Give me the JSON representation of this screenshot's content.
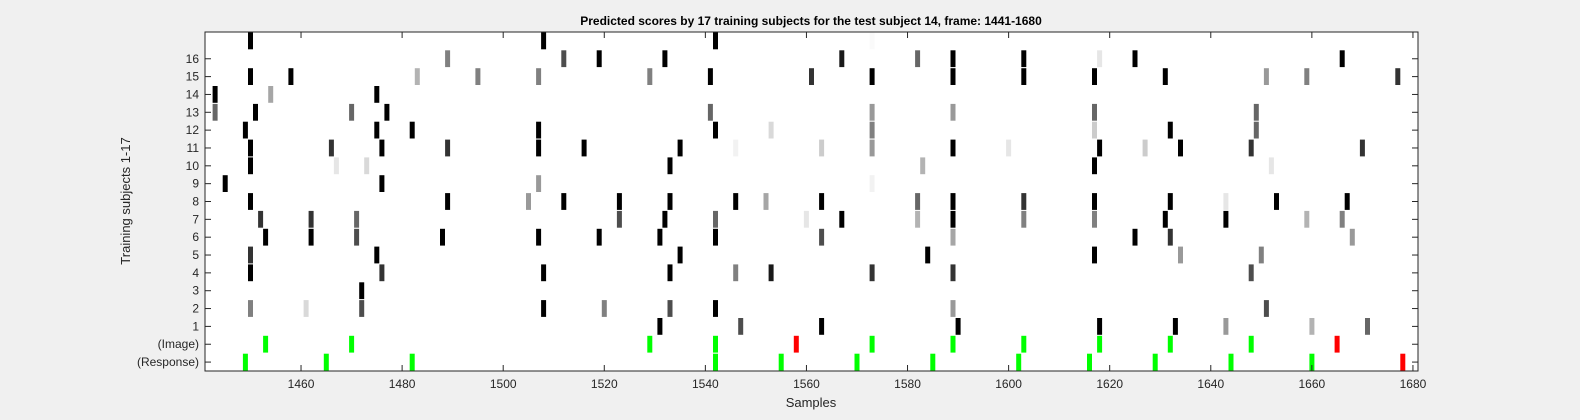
{
  "chart_data": {
    "type": "heatmap",
    "title": "Predicted scores by 17 training subjects for the test subject 14, frame: 1441-1680",
    "xlabel": "Samples",
    "ylabel": "Training subjects 1-17",
    "xlim": [
      1441,
      1680
    ],
    "xticks": [
      1460,
      1480,
      1500,
      1520,
      1540,
      1560,
      1580,
      1600,
      1620,
      1640,
      1660,
      1680
    ],
    "rows": [
      "(Response)",
      "(Image)",
      "1",
      "2",
      "3",
      "4",
      "5",
      "6",
      "7",
      "8",
      "9",
      "10",
      "11",
      "12",
      "13",
      "14",
      "15",
      "16",
      "17"
    ],
    "ytick_labels": [
      "(Response)",
      "(Image)",
      "1",
      "2",
      "3",
      "4",
      "5",
      "6",
      "7",
      "8",
      "9",
      "10",
      "11",
      "12",
      "13",
      "14",
      "15",
      "16"
    ],
    "colors": {
      "background": "#f0f0f0",
      "axes": "#ffffff",
      "correct": "#00ff00",
      "incorrect": "#ff0000"
    },
    "cells": {
      "(Response)": [
        [
          1449,
          "g"
        ],
        [
          1465,
          "g"
        ],
        [
          1482,
          "g"
        ],
        [
          1542,
          "g"
        ],
        [
          1555,
          "g"
        ],
        [
          1570,
          "g"
        ],
        [
          1585,
          "g"
        ],
        [
          1602,
          "g"
        ],
        [
          1616,
          "g"
        ],
        [
          1629,
          "g"
        ],
        [
          1644,
          "g"
        ],
        [
          1660,
          "g"
        ],
        [
          1678,
          "r"
        ]
      ],
      "(Image)": [
        [
          1453,
          "g"
        ],
        [
          1470,
          "g"
        ],
        [
          1529,
          "g"
        ],
        [
          1542,
          "g"
        ],
        [
          1558,
          "r"
        ],
        [
          1573,
          "g"
        ],
        [
          1589,
          "g"
        ],
        [
          1603,
          "g"
        ],
        [
          1618,
          "g"
        ],
        [
          1632,
          "g"
        ],
        [
          1648,
          "g"
        ],
        [
          1665,
          "r"
        ]
      ],
      "1": [
        [
          1531,
          1
        ],
        [
          1547,
          0.7
        ],
        [
          1563,
          1
        ],
        [
          1590,
          1
        ],
        [
          1618,
          1
        ],
        [
          1633,
          1
        ],
        [
          1643,
          0.4
        ],
        [
          1660,
          0.3
        ],
        [
          1671,
          0.6
        ]
      ],
      "2": [
        [
          1450,
          0.5
        ],
        [
          1461,
          0.15
        ],
        [
          1472,
          0.7
        ],
        [
          1508,
          1
        ],
        [
          1520,
          0.5
        ],
        [
          1533,
          0.7
        ],
        [
          1542,
          1
        ],
        [
          1589,
          0.4
        ],
        [
          1651,
          0.7
        ]
      ],
      "3": [
        [
          1472,
          1
        ]
      ],
      "4": [
        [
          1450,
          1
        ],
        [
          1476,
          0.8
        ],
        [
          1508,
          1
        ],
        [
          1533,
          1
        ],
        [
          1546,
          0.5
        ],
        [
          1553,
          0.9
        ],
        [
          1573,
          0.8
        ],
        [
          1589,
          0.8
        ],
        [
          1648,
          0.7
        ]
      ],
      "5": [
        [
          1450,
          0.8
        ],
        [
          1475,
          1
        ],
        [
          1535,
          1
        ],
        [
          1584,
          1
        ],
        [
          1617,
          1
        ],
        [
          1634,
          0.4
        ],
        [
          1650,
          0.5
        ]
      ],
      "6": [
        [
          1453,
          1
        ],
        [
          1462,
          1
        ],
        [
          1471,
          0.7
        ],
        [
          1488,
          1
        ],
        [
          1507,
          1
        ],
        [
          1519,
          1
        ],
        [
          1531,
          1
        ],
        [
          1542,
          1
        ],
        [
          1563,
          0.7
        ],
        [
          1589,
          0.35
        ],
        [
          1625,
          1
        ],
        [
          1632,
          0.8
        ],
        [
          1668,
          0.4
        ]
      ],
      "7": [
        [
          1452,
          0.8
        ],
        [
          1462,
          0.8
        ],
        [
          1471,
          0.6
        ],
        [
          1523,
          0.7
        ],
        [
          1532,
          1
        ],
        [
          1542,
          0.6
        ],
        [
          1560,
          0.1
        ],
        [
          1567,
          1
        ],
        [
          1582,
          0.3
        ],
        [
          1589,
          1
        ],
        [
          1603,
          0.5
        ],
        [
          1617,
          0.5
        ],
        [
          1631,
          1
        ],
        [
          1643,
          1
        ],
        [
          1659,
          0.3
        ],
        [
          1666,
          0.5
        ]
      ],
      "8": [
        [
          1450,
          1
        ],
        [
          1489,
          1
        ],
        [
          1505,
          0.4
        ],
        [
          1512,
          1
        ],
        [
          1523,
          1
        ],
        [
          1533,
          1
        ],
        [
          1546,
          1
        ],
        [
          1552,
          0.35
        ],
        [
          1563,
          1
        ],
        [
          1582,
          0.6
        ],
        [
          1589,
          1
        ],
        [
          1603,
          0.8
        ],
        [
          1617,
          1
        ],
        [
          1632,
          1
        ],
        [
          1643,
          0.1
        ],
        [
          1653,
          1
        ],
        [
          1667,
          1
        ]
      ],
      "9": [
        [
          1445,
          1
        ],
        [
          1476,
          1
        ],
        [
          1507,
          0.4
        ],
        [
          1573,
          0.05
        ]
      ],
      "10": [
        [
          1450,
          1
        ],
        [
          1467,
          0.1
        ],
        [
          1473,
          0.15
        ],
        [
          1533,
          1
        ],
        [
          1583,
          0.3
        ],
        [
          1617,
          1
        ],
        [
          1652,
          0.1
        ]
      ],
      "11": [
        [
          1450,
          1
        ],
        [
          1466,
          0.8
        ],
        [
          1476,
          1
        ],
        [
          1489,
          0.8
        ],
        [
          1507,
          1
        ],
        [
          1516,
          1
        ],
        [
          1535,
          1
        ],
        [
          1546,
          0.05
        ],
        [
          1563,
          0.2
        ],
        [
          1573,
          0.4
        ],
        [
          1589,
          1
        ],
        [
          1600,
          0.1
        ],
        [
          1618,
          1
        ],
        [
          1627,
          0.2
        ],
        [
          1634,
          1
        ],
        [
          1648,
          0.8
        ],
        [
          1670,
          0.8
        ]
      ],
      "12": [
        [
          1449,
          1
        ],
        [
          1475,
          1
        ],
        [
          1482,
          1
        ],
        [
          1507,
          1
        ],
        [
          1542,
          1
        ],
        [
          1553,
          0.15
        ],
        [
          1573,
          0.5
        ],
        [
          1617,
          0.2
        ],
        [
          1632,
          1
        ],
        [
          1649,
          0.6
        ]
      ],
      "13": [
        [
          1443,
          0.6
        ],
        [
          1451,
          1
        ],
        [
          1470,
          0.6
        ],
        [
          1477,
          1
        ],
        [
          1541,
          0.6
        ],
        [
          1573,
          0.4
        ],
        [
          1589,
          0.4
        ],
        [
          1617,
          0.6
        ],
        [
          1649,
          0.6
        ]
      ],
      "14": [
        [
          1443,
          1
        ],
        [
          1454,
          0.35
        ],
        [
          1475,
          1
        ]
      ],
      "15": [
        [
          1450,
          1
        ],
        [
          1458,
          1
        ],
        [
          1483,
          0.3
        ],
        [
          1495,
          0.5
        ],
        [
          1507,
          0.5
        ],
        [
          1529,
          0.5
        ],
        [
          1541,
          1
        ],
        [
          1561,
          0.8
        ],
        [
          1573,
          1
        ],
        [
          1589,
          1
        ],
        [
          1603,
          1
        ],
        [
          1617,
          1
        ],
        [
          1631,
          1
        ],
        [
          1651,
          0.4
        ],
        [
          1659,
          0.5
        ],
        [
          1677,
          0.8
        ]
      ],
      "16": [
        [
          1489,
          0.5
        ],
        [
          1512,
          0.7
        ],
        [
          1519,
          1
        ],
        [
          1532,
          1
        ],
        [
          1567,
          0.9
        ],
        [
          1582,
          0.6
        ],
        [
          1589,
          1
        ],
        [
          1603,
          1
        ],
        [
          1618,
          0.1
        ],
        [
          1625,
          1
        ],
        [
          1666,
          1
        ]
      ],
      "17": [
        [
          1450,
          1
        ],
        [
          1508,
          1
        ],
        [
          1542,
          1
        ],
        [
          1573,
          0.02
        ]
      ]
    }
  }
}
